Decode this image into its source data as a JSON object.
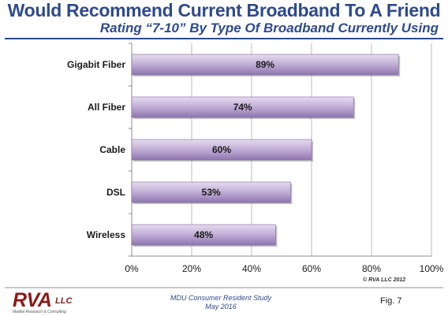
{
  "title": "Would Recommend Current Broadband To A Friend",
  "subtitle": "Rating “7-10” By Type Of Broadband Currently Using",
  "copyright": "© RVA LLC 2012",
  "logo": {
    "name": "RVA",
    "suffix": "LLC",
    "tagline": "Market Research & Consulting"
  },
  "footer": {
    "study_line1": "MDU Consumer Resident Study",
    "study_line2": "May 2016",
    "figure": "Fig. 7"
  },
  "colors": {
    "title": "#2e4a8c",
    "bar_light": "#e6dcef",
    "bar_mid": "#c4b1d8",
    "bar_dark": "#8f76b0",
    "logo": "#8b1a1a"
  },
  "chart_data": {
    "type": "bar",
    "orientation": "horizontal",
    "categories": [
      "Gigabit Fiber",
      "All Fiber",
      "Cable",
      "DSL",
      "Wireless"
    ],
    "values": [
      89,
      74,
      60,
      53,
      48
    ],
    "data_labels": [
      "89%",
      "74%",
      "60%",
      "53%",
      "48%"
    ],
    "xlim": [
      0,
      100
    ],
    "x_ticks": [
      "0%",
      "20%",
      "40%",
      "60%",
      "80%",
      "100%"
    ],
    "x_tick_values": [
      0,
      20,
      40,
      60,
      80,
      100
    ],
    "grid": true,
    "legend": "none"
  }
}
